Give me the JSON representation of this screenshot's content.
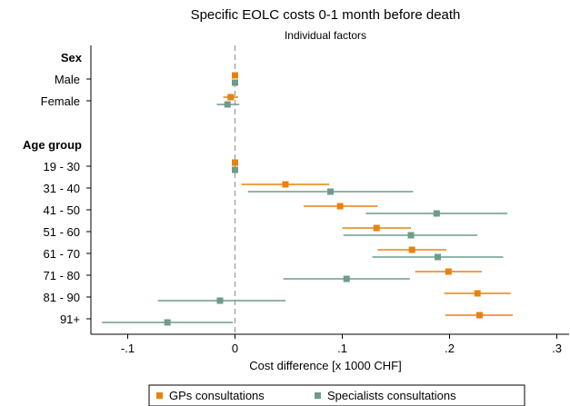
{
  "chart_data": {
    "type": "scatter",
    "subtype": "coefficient plot with confidence intervals",
    "title": "Specific EOLC costs 0-1 month before death",
    "subtitle": "Individual factors",
    "xlabel": "Cost difference [x 1000 CHF]",
    "xlim": [
      -0.125,
      0.305
    ],
    "xticks": [
      -0.1,
      0,
      0.1,
      0.2,
      0.3
    ],
    "xtick_labels": [
      "-.1",
      "0",
      ".1",
      ".2",
      ".3"
    ],
    "reference_line": 0,
    "legend_position": "bottom",
    "categories": [
      "Sex",
      "Male",
      "Female",
      "",
      "Age group",
      "19 - 30",
      "31 - 40",
      "41 - 50",
      "51 - 60",
      "61 - 70",
      "71 - 80",
      "81 - 90",
      "91+"
    ],
    "headers": [
      "Sex",
      "Age group"
    ],
    "series": [
      {
        "name": "GPs consultations",
        "color": "#e8820c",
        "points": [
          {
            "category": "Male",
            "value": 0.0,
            "lo": 0.0,
            "hi": 0.0
          },
          {
            "category": "Female",
            "value": -0.004,
            "lo": -0.011,
            "hi": 0.003
          },
          {
            "category": "19 - 30",
            "value": 0.0,
            "lo": 0.0,
            "hi": 0.0
          },
          {
            "category": "31 - 40",
            "value": 0.047,
            "lo": 0.006,
            "hi": 0.088
          },
          {
            "category": "41 - 50",
            "value": 0.098,
            "lo": 0.064,
            "hi": 0.133
          },
          {
            "category": "51 - 60",
            "value": 0.132,
            "lo": 0.1,
            "hi": 0.164
          },
          {
            "category": "61 - 70",
            "value": 0.165,
            "lo": 0.133,
            "hi": 0.197
          },
          {
            "category": "71 - 80",
            "value": 0.199,
            "lo": 0.168,
            "hi": 0.23
          },
          {
            "category": "81 - 90",
            "value": 0.226,
            "lo": 0.195,
            "hi": 0.257
          },
          {
            "category": "91+",
            "value": 0.228,
            "lo": 0.196,
            "hi": 0.259
          }
        ]
      },
      {
        "name": "Specialists consultations",
        "color": "#6e9b8b",
        "points": [
          {
            "category": "Male",
            "value": 0.0,
            "lo": 0.0,
            "hi": 0.0
          },
          {
            "category": "Female",
            "value": -0.007,
            "lo": -0.017,
            "hi": 0.004
          },
          {
            "category": "19 - 30",
            "value": 0.0,
            "lo": 0.0,
            "hi": 0.0
          },
          {
            "category": "31 - 40",
            "value": 0.089,
            "lo": 0.012,
            "hi": 0.166
          },
          {
            "category": "41 - 50",
            "value": 0.188,
            "lo": 0.122,
            "hi": 0.254
          },
          {
            "category": "51 - 60",
            "value": 0.164,
            "lo": 0.101,
            "hi": 0.226
          },
          {
            "category": "61 - 70",
            "value": 0.189,
            "lo": 0.128,
            "hi": 0.25
          },
          {
            "category": "71 - 80",
            "value": 0.104,
            "lo": 0.045,
            "hi": 0.163
          },
          {
            "category": "81 - 90",
            "value": -0.014,
            "lo": -0.072,
            "hi": 0.047
          },
          {
            "category": "91+",
            "value": -0.063,
            "lo": -0.124,
            "hi": -0.002
          }
        ]
      }
    ]
  }
}
